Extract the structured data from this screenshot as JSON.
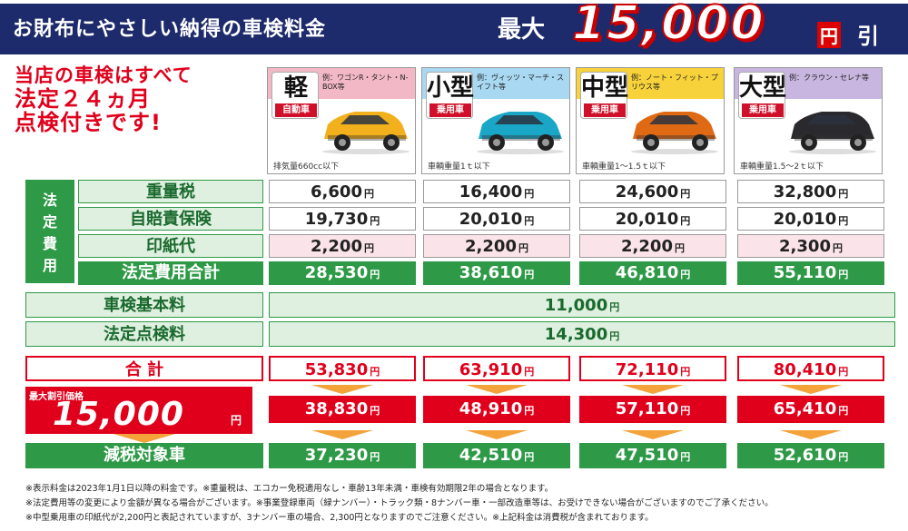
{
  "banner": {
    "title": "お財布にやさしい納得の車検料金",
    "max": "最大",
    "amount": "15,000",
    "yen": "円",
    "hiki": "引"
  },
  "catch": [
    "当店の車検はすべて",
    "法定２４ヵ月",
    "点検付きです!"
  ],
  "cars": [
    {
      "kanji": "軽",
      "sub": "自動車",
      "example": "例：ワゴンR・タント・N-BOX等",
      "spec": "排気量660cc以下",
      "header_color": "#f3b8c6",
      "body_color": "#f2b01c"
    },
    {
      "kanji": "小型",
      "sub": "乗用車",
      "example": "例：ヴィッツ・マーチ・スイフト等",
      "spec": "車輌重量1ｔ以下",
      "header_color": "#a9d8f2",
      "body_color": "#1aa6c6"
    },
    {
      "kanji": "中型",
      "sub": "乗用車",
      "example": "例：ノート・フィット・プリウス等",
      "spec": "車輌重量1～1.5ｔ以下",
      "header_color": "#f7d23a",
      "body_color": "#e06a14"
    },
    {
      "kanji": "大型",
      "sub": "乗用車",
      "example": "例：クラウン・セレナ等",
      "spec": "車輌重量1.5～2ｔ以下",
      "header_color": "#c9b6e0",
      "body_color": "#2a2a2e"
    }
  ],
  "legal_label": "法定費用",
  "rows": [
    {
      "label": "重量税",
      "values": [
        "6,600",
        "16,400",
        "24,600",
        "32,800"
      ]
    },
    {
      "label": "自賠責保険",
      "values": [
        "19,730",
        "20,010",
        "20,010",
        "20,010"
      ]
    },
    {
      "label": "印紙代",
      "values": [
        "2,200",
        "2,200",
        "2,200",
        "2,300"
      ]
    },
    {
      "label": "法定費用合計",
      "values": [
        "28,530",
        "38,610",
        "46,810",
        "55,110"
      ]
    }
  ],
  "basic": {
    "label": "車検基本料",
    "value": "11,000"
  },
  "inspect": {
    "label": "法定点検料",
    "value": "14,300"
  },
  "total": {
    "label": "合 計",
    "values": [
      "53,830",
      "63,910",
      "72,110",
      "80,410"
    ]
  },
  "discount": {
    "caption": "最大割引価格",
    "amount": "15,000",
    "values": [
      "38,830",
      "48,910",
      "57,110",
      "65,410"
    ]
  },
  "tax": {
    "label": "減税対象車",
    "values": [
      "37,230",
      "42,510",
      "47,510",
      "52,610"
    ]
  },
  "yen": "円",
  "notes": [
    "※表示料金は2023年1月1日以降の料金です。※重量税は、エコカー免税適用なし・車齢13年未満・車検有効期限2年の場合となります。",
    "※法定費用等の変更により金額が異なる場合がございます。※事業登録車両（緑ナンバー）・トラック類・8ナンバー車・一部改造車等は、お受けできない場合がございますのでご了承ください。",
    "※中型乗用車の印紙代が2,200円と表記されていますが、3ナンバー車の場合、2,300円となりますのでご注意ください。※上記料金は消費税が含まれております。"
  ]
}
